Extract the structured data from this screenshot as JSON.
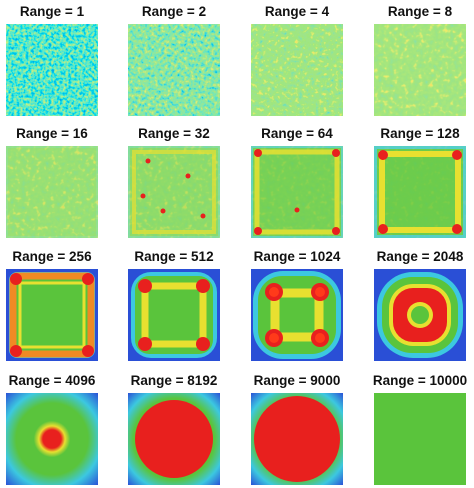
{
  "panels": [
    {
      "title": "Range = 1"
    },
    {
      "title": "Range = 2"
    },
    {
      "title": "Range = 4"
    },
    {
      "title": "Range = 8"
    },
    {
      "title": "Range = 16"
    },
    {
      "title": "Range = 32"
    },
    {
      "title": "Range = 64"
    },
    {
      "title": "Range = 128"
    },
    {
      "title": "Range = 256"
    },
    {
      "title": "Range = 512"
    },
    {
      "title": "Range = 1024"
    },
    {
      "title": "Range = 2048"
    },
    {
      "title": "Range = 4096"
    },
    {
      "title": "Range = 8192"
    },
    {
      "title": "Range = 9000"
    },
    {
      "title": "Range = 10000"
    }
  ]
}
